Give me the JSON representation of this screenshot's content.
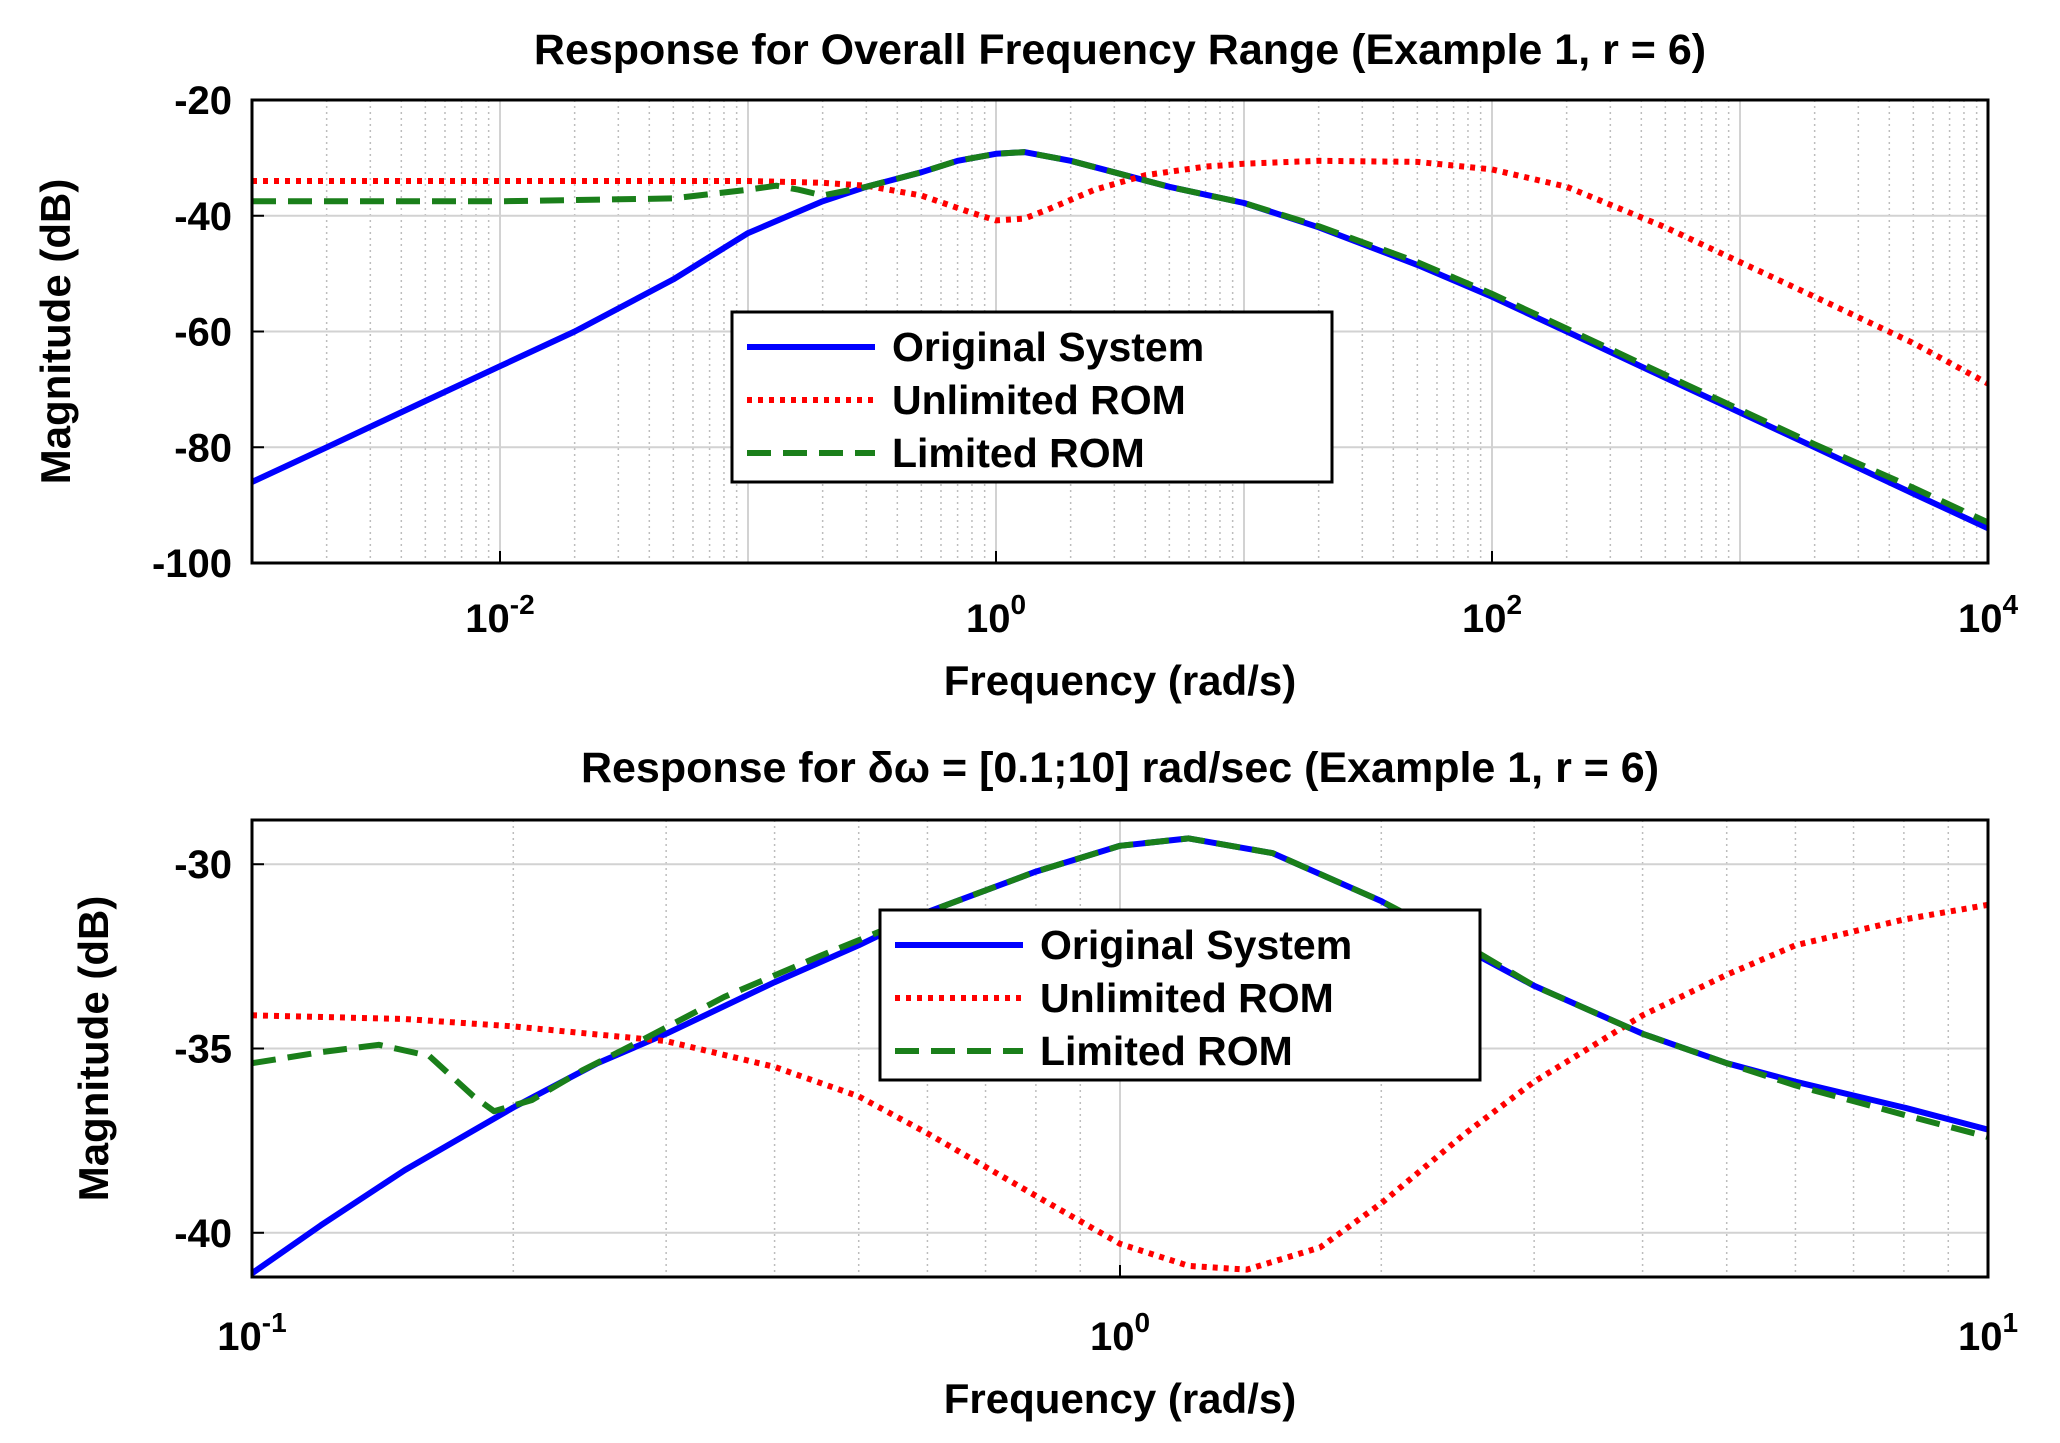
{
  "chart_data": [
    {
      "type": "line",
      "title": "Response for Overall Frequency Range (Example 1, r = 6)",
      "xlabel": "Frequency  (rad/s)",
      "ylabel": "Magnitude (dB)",
      "xscale": "log",
      "xlim": [
        0.001,
        10000
      ],
      "ylim": [
        -100,
        -20
      ],
      "x_ticks": [
        {
          "base": "10",
          "exp": "-2"
        },
        {
          "base": "10",
          "exp": "0"
        },
        {
          "base": "10",
          "exp": "2"
        },
        {
          "base": "10",
          "exp": "4"
        }
      ],
      "x_tick_values": [
        0.01,
        1,
        100,
        10000
      ],
      "y_ticks": [
        "-20",
        "-40",
        "-60",
        "-80",
        "-100"
      ],
      "y_tick_values": [
        -20,
        -40,
        -60,
        -80,
        -100
      ],
      "grid": true,
      "legend_position": "center",
      "series": [
        {
          "name": "Original System",
          "color": "#0000ff",
          "style": "solid",
          "x": [
            0.001,
            0.002,
            0.005,
            0.01,
            0.02,
            0.05,
            0.1,
            0.2,
            0.3,
            0.5,
            0.7,
            1,
            1.3,
            2,
            3,
            5,
            10,
            20,
            50,
            100,
            200,
            500,
            1000,
            2000,
            5000,
            10000
          ],
          "y": [
            -86,
            -80,
            -72,
            -66,
            -60,
            -51,
            -43,
            -37.5,
            -35,
            -32.5,
            -30.5,
            -29.3,
            -29,
            -30.5,
            -32.5,
            -35,
            -37.8,
            -42,
            -48.5,
            -54,
            -60,
            -68,
            -74,
            -80,
            -88,
            -94
          ]
        },
        {
          "name": "Unlimited ROM",
          "color": "#ff0000",
          "style": "dotted",
          "x": [
            0.001,
            0.01,
            0.05,
            0.1,
            0.2,
            0.3,
            0.5,
            0.8,
            1,
            1.3,
            1.6,
            2.5,
            4,
            7,
            10,
            20,
            50,
            100,
            200,
            500,
            1000,
            2000,
            5000,
            10000
          ],
          "y": [
            -34,
            -34,
            -34,
            -34,
            -34.3,
            -34.8,
            -36.5,
            -39.5,
            -40.8,
            -40.5,
            -39,
            -35.5,
            -33,
            -31.5,
            -31,
            -30.5,
            -30.7,
            -32,
            -35,
            -42,
            -48,
            -54,
            -62,
            -69
          ]
        },
        {
          "name": "Limited ROM",
          "color": "#1a7f1a",
          "style": "dashed",
          "x": [
            0.001,
            0.01,
            0.05,
            0.1,
            0.13,
            0.16,
            0.2,
            0.3,
            0.5,
            0.7,
            1,
            1.3,
            2,
            3,
            5,
            10,
            20,
            50,
            100,
            200,
            500,
            1000,
            2000,
            5000,
            10000
          ],
          "y": [
            -37.5,
            -37.5,
            -37,
            -35.5,
            -34.8,
            -35.5,
            -36.5,
            -35,
            -32.5,
            -30.5,
            -29.3,
            -29,
            -30.5,
            -32.5,
            -35,
            -37.8,
            -41.8,
            -48,
            -53.5,
            -59.5,
            -67.5,
            -73.5,
            -79.5,
            -87,
            -93
          ]
        }
      ]
    },
    {
      "type": "line",
      "title": "Response for δω = [0.1;10] rad/sec (Example 1, r = 6)",
      "xlabel": "Frequency  (rad/s)",
      "ylabel": "Magnitude (dB)",
      "xscale": "log",
      "xlim": [
        0.1,
        10
      ],
      "ylim": [
        -41.2,
        -28.8
      ],
      "x_ticks": [
        {
          "base": "10",
          "exp": "-1"
        },
        {
          "base": "10",
          "exp": "0"
        },
        {
          "base": "10",
          "exp": "1"
        }
      ],
      "x_tick_values": [
        0.1,
        1,
        10
      ],
      "y_ticks": [
        "-30",
        "-35",
        "-40"
      ],
      "y_tick_values": [
        -30,
        -35,
        -40
      ],
      "grid": true,
      "legend_position": "center",
      "series": [
        {
          "name": "Original System",
          "color": "#0000ff",
          "style": "solid",
          "x": [
            0.1,
            0.12,
            0.15,
            0.2,
            0.25,
            0.3,
            0.4,
            0.5,
            0.6,
            0.8,
            1,
            1.2,
            1.5,
            2,
            2.5,
            3,
            4,
            5,
            6,
            8,
            10
          ],
          "y": [
            -41.1,
            -39.8,
            -38.3,
            -36.6,
            -35.4,
            -34.6,
            -33.2,
            -32.2,
            -31.3,
            -30.2,
            -29.5,
            -29.3,
            -29.7,
            -31,
            -32.3,
            -33.3,
            -34.6,
            -35.4,
            -35.9,
            -36.6,
            -37.2
          ]
        },
        {
          "name": "Unlimited ROM",
          "color": "#ff0000",
          "style": "dotted",
          "x": [
            0.1,
            0.15,
            0.2,
            0.3,
            0.4,
            0.5,
            0.6,
            0.8,
            1,
            1.2,
            1.4,
            1.7,
            2,
            2.5,
            3,
            4,
            5,
            6,
            8,
            10
          ],
          "y": [
            -34.1,
            -34.2,
            -34.4,
            -34.8,
            -35.5,
            -36.3,
            -37.3,
            -39,
            -40.3,
            -40.9,
            -41,
            -40.4,
            -39.2,
            -37.3,
            -35.9,
            -34.1,
            -33,
            -32.2,
            -31.5,
            -31.1
          ]
        },
        {
          "name": "Limited ROM",
          "color": "#1a7f1a",
          "style": "dashed",
          "x": [
            0.1,
            0.12,
            0.14,
            0.16,
            0.18,
            0.19,
            0.21,
            0.24,
            0.28,
            0.35,
            0.45,
            0.6,
            0.8,
            1,
            1.2,
            1.5,
            2,
            2.5,
            3,
            4,
            5,
            6,
            8,
            10
          ],
          "y": [
            -35.4,
            -35.1,
            -34.9,
            -35.2,
            -36.3,
            -36.7,
            -36.4,
            -35.6,
            -34.8,
            -33.6,
            -32.5,
            -31.3,
            -30.2,
            -29.5,
            -29.3,
            -29.7,
            -31,
            -32.2,
            -33.3,
            -34.6,
            -35.4,
            -36,
            -36.8,
            -37.4
          ]
        }
      ]
    }
  ]
}
